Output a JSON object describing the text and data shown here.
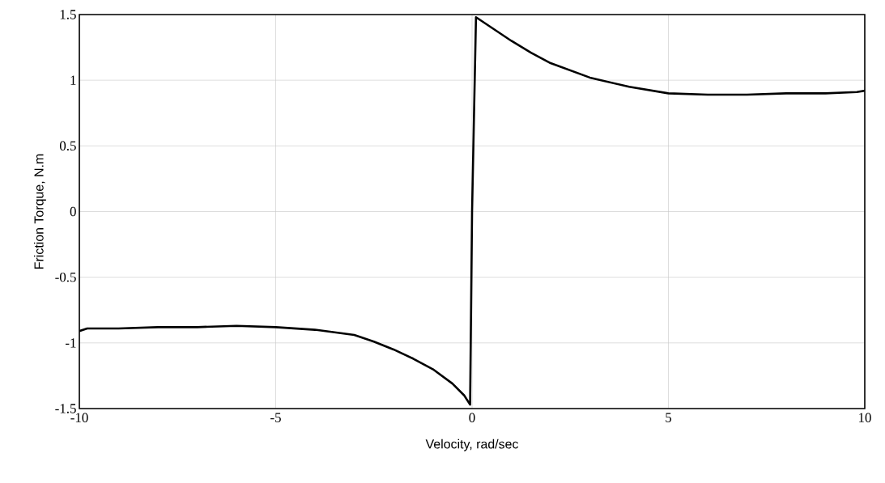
{
  "chart_data": {
    "type": "line",
    "xlabel": "Velocity, rad/sec",
    "ylabel": "Friction Torque, N.m",
    "xlim": [
      -10,
      10
    ],
    "ylim": [
      -1.5,
      1.5
    ],
    "xticks": [
      -10,
      -5,
      0,
      5,
      10
    ],
    "yticks": [
      -1.5,
      -1,
      -0.5,
      0,
      0.5,
      1,
      1.5
    ],
    "grid": true,
    "series": [
      {
        "color": "#000000",
        "x": [
          -10,
          -9.8,
          -9,
          -8,
          -7,
          -6,
          -5,
          -4,
          -3,
          -2.5,
          -2,
          -1.5,
          -1,
          -0.5,
          -0.2,
          -0.05,
          0,
          0.1,
          0.5,
          1,
          1.5,
          2,
          3,
          4,
          5,
          6,
          7,
          8,
          9,
          9.8,
          10
        ],
        "values": [
          -0.91,
          -0.89,
          -0.89,
          -0.88,
          -0.88,
          -0.87,
          -0.88,
          -0.9,
          -0.94,
          -0.99,
          -1.05,
          -1.12,
          -1.2,
          -1.31,
          -1.4,
          -1.47,
          0,
          1.48,
          1.4,
          1.3,
          1.21,
          1.13,
          1.02,
          0.95,
          0.9,
          0.89,
          0.89,
          0.9,
          0.9,
          0.91,
          0.92
        ]
      }
    ]
  }
}
